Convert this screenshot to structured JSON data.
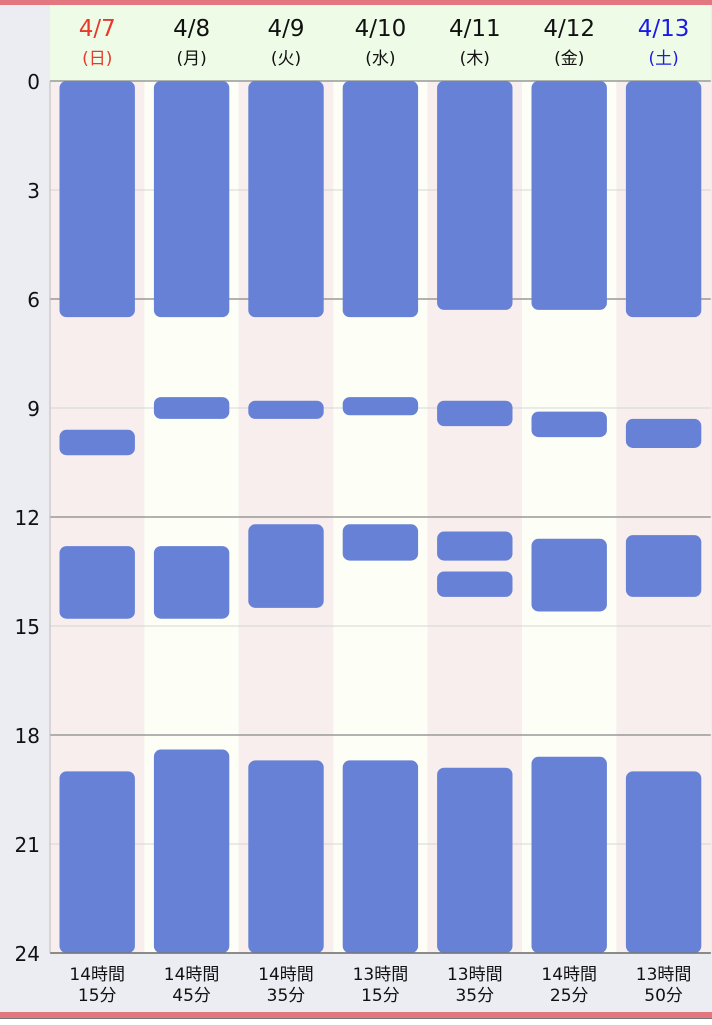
{
  "chart_data": {
    "type": "bar",
    "subtype": "sleep-timeline",
    "y_axis": {
      "min": 0,
      "max": 24,
      "ticks": [
        0,
        3,
        6,
        9,
        12,
        15,
        18,
        21,
        24
      ]
    },
    "grid": true,
    "days": [
      {
        "date": "4/7",
        "weekday": "(日)",
        "date_color": "#e8392c",
        "sleep_blocks": [
          [
            0,
            6.5
          ],
          [
            9.6,
            10.3
          ],
          [
            12.8,
            14.8
          ],
          [
            19.0,
            24
          ]
        ],
        "total": [
          "14時間",
          "15分"
        ]
      },
      {
        "date": "4/8",
        "weekday": "(月)",
        "date_color": "#111111",
        "sleep_blocks": [
          [
            0,
            6.5
          ],
          [
            8.7,
            9.3
          ],
          [
            12.8,
            14.8
          ],
          [
            18.4,
            24
          ]
        ],
        "total": [
          "14時間",
          "45分"
        ]
      },
      {
        "date": "4/9",
        "weekday": "(火)",
        "date_color": "#111111",
        "sleep_blocks": [
          [
            0,
            6.5
          ],
          [
            8.8,
            9.3
          ],
          [
            12.2,
            14.5
          ],
          [
            18.7,
            24
          ]
        ],
        "total": [
          "14時間",
          "35分"
        ]
      },
      {
        "date": "4/10",
        "weekday": "(水)",
        "date_color": "#111111",
        "sleep_blocks": [
          [
            0,
            6.5
          ],
          [
            8.7,
            9.2
          ],
          [
            12.2,
            13.2
          ],
          [
            18.7,
            24
          ]
        ],
        "total": [
          "13時間",
          "15分"
        ]
      },
      {
        "date": "4/11",
        "weekday": "(木)",
        "date_color": "#111111",
        "sleep_blocks": [
          [
            0,
            6.3
          ],
          [
            8.8,
            9.5
          ],
          [
            12.4,
            13.2
          ],
          [
            13.5,
            14.2
          ],
          [
            18.9,
            24
          ]
        ],
        "total": [
          "13時間",
          "35分"
        ]
      },
      {
        "date": "4/12",
        "weekday": "(金)",
        "date_color": "#111111",
        "sleep_blocks": [
          [
            0,
            6.3
          ],
          [
            9.1,
            9.8
          ],
          [
            12.6,
            14.6
          ],
          [
            18.6,
            24
          ]
        ],
        "total": [
          "14時間",
          "25分"
        ]
      },
      {
        "date": "4/13",
        "weekday": "(土)",
        "date_color": "#1a1ae6",
        "sleep_blocks": [
          [
            0,
            6.5
          ],
          [
            9.3,
            10.1
          ],
          [
            12.5,
            14.2
          ],
          [
            19.0,
            24
          ]
        ],
        "total": [
          "13時間",
          "50分"
        ]
      }
    ],
    "colors": {
      "sleep_bar": "#6681d6",
      "column_pink": "#f8eeee",
      "column_cream": "#fdfef6",
      "header_bg": "#eefbe7",
      "grid_major": "#999999",
      "grid_minor": "#d6d6d6",
      "axis_bg": "#ececf3"
    }
  }
}
